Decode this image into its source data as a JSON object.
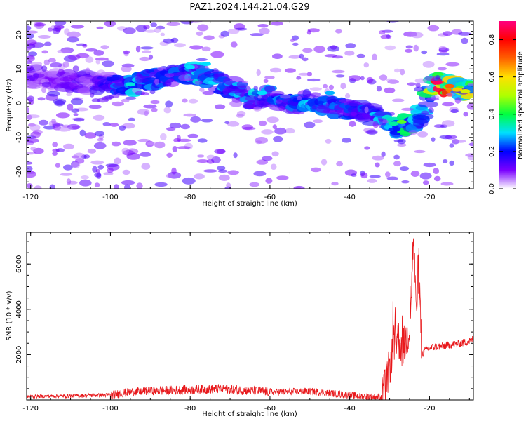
{
  "title": "PAZ1.2024.144.21.04.G29",
  "chart_data": [
    {
      "type": "heatmap",
      "xlabel": "Height of straight line (km)",
      "ylabel": "Frequency (Hz)",
      "xlim": [
        -121,
        -9
      ],
      "ylim": [
        -25,
        24
      ],
      "xticks": [
        -120,
        -100,
        -80,
        -60,
        -40,
        -20
      ],
      "yticks": [
        -20,
        -10,
        0,
        10,
        20
      ],
      "colorbar": {
        "label": "Normalized spectral amplitude",
        "range": [
          0,
          0.9
        ],
        "ticks": [
          0.0,
          0.2,
          0.4,
          0.6,
          0.8
        ],
        "colors": [
          "#ffffff",
          "#7a00ff",
          "#0000ff",
          "#00e0ff",
          "#00ff40",
          "#b0ff00",
          "#ffe000",
          "#ff6000",
          "#ff0000",
          "#ff0080"
        ]
      },
      "ridge": {
        "x": [
          -118,
          -110,
          -100,
          -95,
          -90,
          -85,
          -80,
          -75,
          -70,
          -65,
          -60,
          -55,
          -50,
          -45,
          -40,
          -35,
          -30,
          -28,
          -25,
          -22,
          -20,
          -18,
          -15,
          -12,
          -9
        ],
        "frequency": [
          7,
          6,
          6,
          5,
          7,
          8,
          9,
          7,
          5,
          1,
          2,
          -1,
          1,
          -1,
          -2,
          -3,
          -6,
          -7,
          -6,
          -3,
          3,
          6,
          5,
          4,
          3
        ],
        "amplitude": [
          0.08,
          0.12,
          0.18,
          0.3,
          0.25,
          0.22,
          0.28,
          0.3,
          0.25,
          0.3,
          0.28,
          0.25,
          0.28,
          0.25,
          0.22,
          0.25,
          0.3,
          0.35,
          0.4,
          0.3,
          0.4,
          0.85,
          0.7,
          0.6,
          0.55
        ]
      }
    },
    {
      "type": "line",
      "xlabel": "Height of straight line (km)",
      "ylabel": "SNR (10 * v/v)",
      "xlim": [
        -121,
        -9
      ],
      "ylim": [
        0,
        7400
      ],
      "xticks": [
        -120,
        -100,
        -80,
        -60,
        -40,
        -20
      ],
      "yticks": [
        2000,
        4000,
        6000
      ],
      "color": "#e8191c",
      "segments": [
        {
          "x": [
            -121,
            -110,
            -100,
            -95,
            -90,
            -80,
            -72,
            -65,
            -58,
            -50,
            -45,
            -40,
            -35,
            -32
          ],
          "y": [
            150,
            180,
            220,
            350,
            400,
            450,
            500,
            400,
            350,
            380,
            300,
            200,
            150,
            100
          ]
        },
        {
          "x": [
            -32,
            -31,
            -30,
            -29,
            -28,
            -27,
            -26,
            -25,
            -24.5,
            -24,
            -23.5,
            -23,
            -22.5,
            -22,
            -21,
            -20,
            -18,
            -16,
            -14,
            -12,
            -10,
            -9
          ],
          "y": [
            100,
            600,
            1500,
            2400,
            2800,
            2300,
            2500,
            3200,
            5000,
            7300,
            4600,
            4200,
            5100,
            2000,
            2200,
            2300,
            2350,
            2400,
            2450,
            2500,
            2600,
            2700
          ]
        }
      ],
      "noise": [
        {
          "range": [
            -121,
            -112
          ],
          "amp": 150
        },
        {
          "range": [
            -112,
            -100
          ],
          "amp": 180
        },
        {
          "range": [
            -100,
            -88
          ],
          "amp": 380
        },
        {
          "range": [
            -88,
            -60
          ],
          "amp": 420
        },
        {
          "range": [
            -60,
            -32
          ],
          "amp": 320
        },
        {
          "range": [
            -32,
            -22
          ],
          "amp": 1800
        },
        {
          "range": [
            -22,
            -9
          ],
          "amp": 350
        }
      ]
    }
  ]
}
